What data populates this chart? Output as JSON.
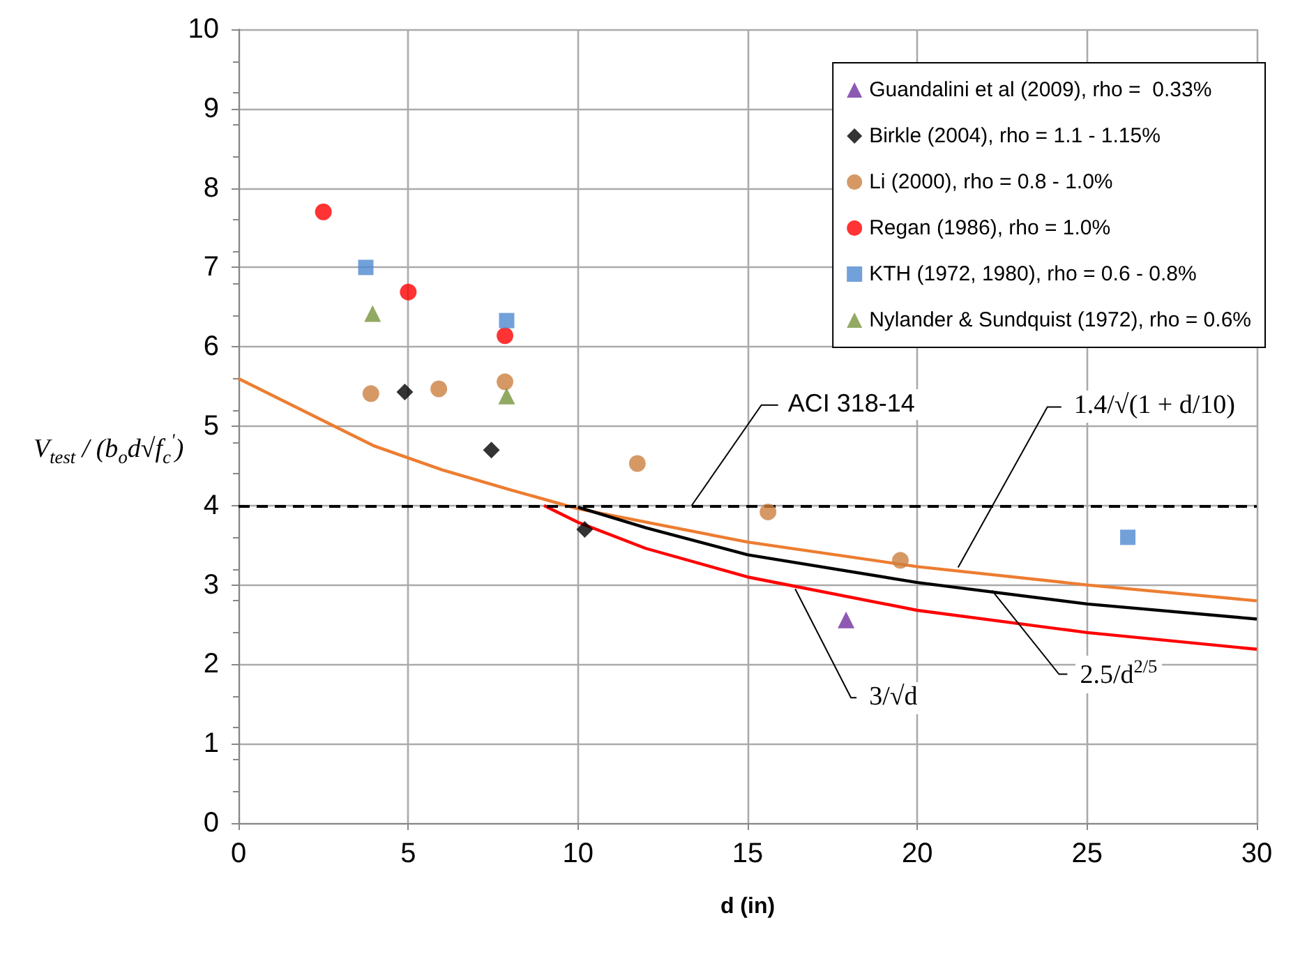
{
  "chart_data": {
    "type": "scatter",
    "xlabel": "d (in)",
    "ylabel": "V$_{test}$ / (b$_{o}$d√f$_{c}$$^{'}$)",
    "xlim": [
      0,
      30
    ],
    "xticks": [
      0,
      5,
      10,
      15,
      20,
      25,
      30
    ],
    "ylim": [
      0,
      10
    ],
    "yticks": [
      0,
      1,
      2,
      3,
      4,
      5,
      6,
      7,
      8,
      9,
      10
    ],
    "grid": true,
    "legend": "top right",
    "series": [
      {
        "name": "Guandalini et al (2009), rho =  0.33%",
        "color": "#7030a0",
        "marker": "triangle",
        "x": [
          17.9
        ],
        "values": [
          2.56
        ]
      },
      {
        "name": "Birkle (2004), rho = 1.1 - 1.15%",
        "color": "#000000",
        "marker": "diamond",
        "x": [
          4.9,
          7.45,
          10.2
        ],
        "values": [
          5.43,
          4.7,
          3.7
        ]
      },
      {
        "name": "Li (2000), rho = 0.8 - 1.0%",
        "color": "#cc8040",
        "marker": "circle",
        "x": [
          3.9,
          5.9,
          7.85,
          11.75,
          15.6,
          19.5
        ],
        "values": [
          5.41,
          5.47,
          5.56,
          4.53,
          3.92,
          3.31
        ]
      },
      {
        "name": "Regan (1986), rho = 1.0%",
        "color": "#ff0000",
        "marker": "circle",
        "x": [
          2.5,
          5.0,
          7.85
        ],
        "values": [
          7.7,
          6.69,
          6.14
        ]
      },
      {
        "name": "KTH (1972, 1980), rho = 0.6 - 0.8%",
        "color": "#4f88d0",
        "marker": "square",
        "x": [
          3.75,
          7.9,
          26.2
        ],
        "values": [
          7.0,
          6.33,
          3.6
        ]
      },
      {
        "name": "Nylander & Sundquist (1972), rho = 0.6%",
        "color": "#77933c",
        "marker": "triangle",
        "x": [
          3.95,
          7.9
        ],
        "values": [
          6.42,
          5.38
        ]
      },
      {
        "type": "line",
        "color": "#ed7d31",
        "marker": "none",
        "line_style": "solid",
        "x": [
          0,
          4,
          6,
          8,
          10,
          15,
          20,
          25,
          30
        ],
        "values": [
          5.6,
          4.75,
          4.45,
          4.2,
          3.96,
          3.54,
          3.23,
          3.0,
          2.8
        ]
      },
      {
        "type": "line",
        "color": "#000000",
        "marker": "none",
        "line_style": "solid",
        "x": [
          10,
          12,
          15,
          20,
          25,
          30
        ],
        "values": [
          3.98,
          3.72,
          3.38,
          3.03,
          2.76,
          2.57
        ]
      },
      {
        "type": "line",
        "color": "#ff0000",
        "marker": "none",
        "line_style": "solid",
        "x": [
          9,
          10,
          12,
          15,
          20,
          25,
          30
        ],
        "values": [
          4.0,
          3.79,
          3.46,
          3.1,
          2.68,
          2.4,
          2.19
        ]
      }
    ],
    "ref_lines": [
      {
        "axis": "y",
        "value": 4,
        "label": "ACI 318-14",
        "color": "#000000",
        "line_style": "dashed"
      }
    ],
    "annotations": [
      {
        "text": "1.4/√(1 + d/10)",
        "x": 21.2,
        "y": 3.22
      },
      {
        "text": "3/√d",
        "x": 16.4,
        "y": 2.95
      },
      {
        "text": "2.5/d$^{2/5}$",
        "x": 22.2,
        "y": 2.93
      }
    ]
  }
}
